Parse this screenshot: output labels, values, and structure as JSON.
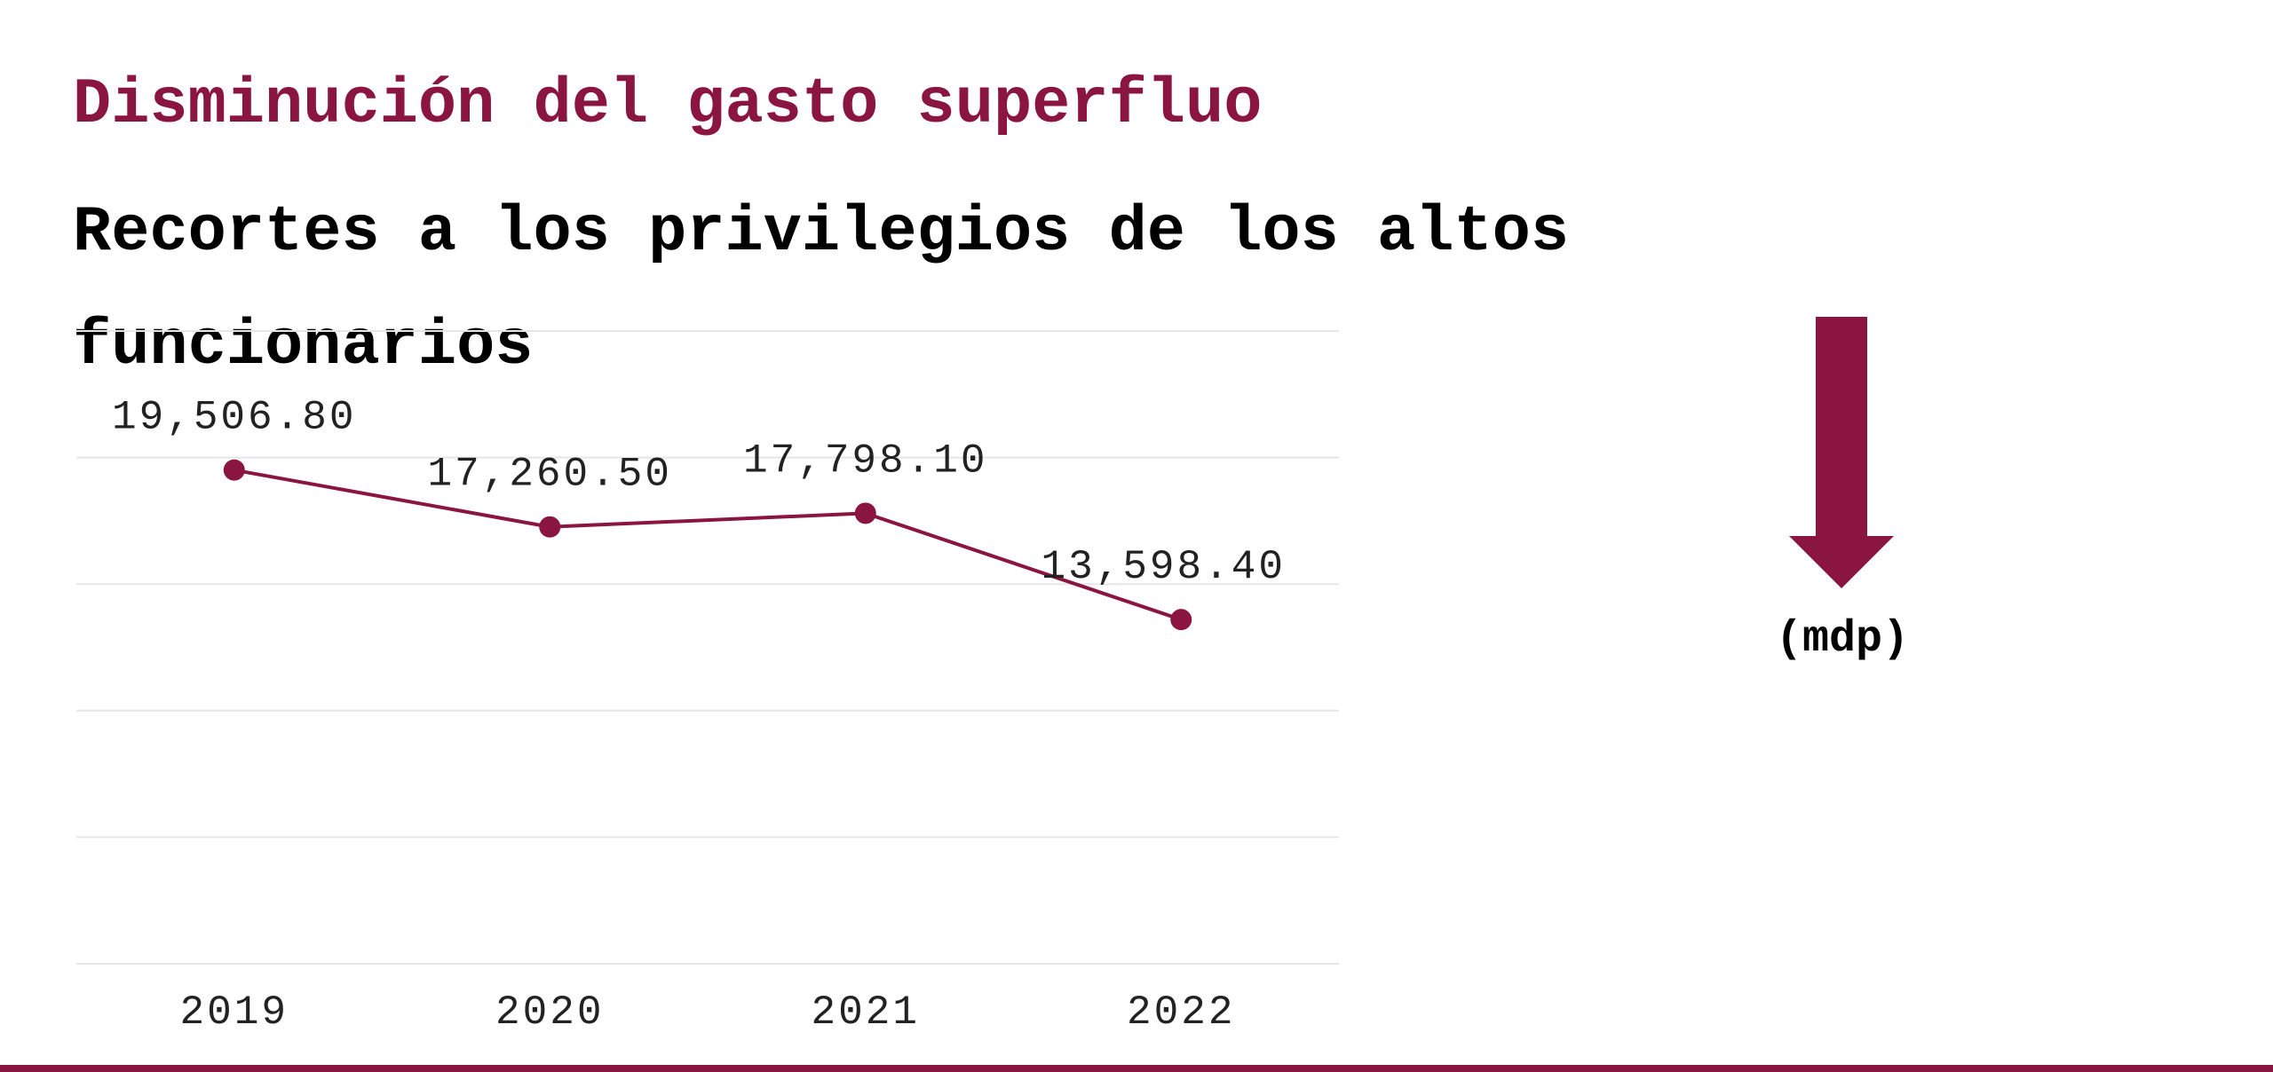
{
  "header": {
    "title": "Disminución del gasto superfluo",
    "subtitle": "Recortes a los privilegios de los altos funcionarios"
  },
  "unit_label": "(mdp)",
  "trend_icon": "down-arrow-icon",
  "colors": {
    "accent": "#8b1541",
    "text": "#000000",
    "grid": "#e6e6e6",
    "axis_text": "#222222"
  },
  "chart_data": {
    "type": "line",
    "categories": [
      "2019",
      "2020",
      "2021",
      "2022"
    ],
    "series": [
      {
        "values": [
          19506.8,
          17260.5,
          17798.1,
          13598.4
        ],
        "labels": [
          "19,506.80",
          "17,260.50",
          "17,798.10",
          "13,598.40"
        ]
      }
    ],
    "title": "",
    "xlabel": "",
    "ylabel": "",
    "ylim": [
      0,
      25000
    ],
    "grid": true,
    "legend": "none"
  }
}
